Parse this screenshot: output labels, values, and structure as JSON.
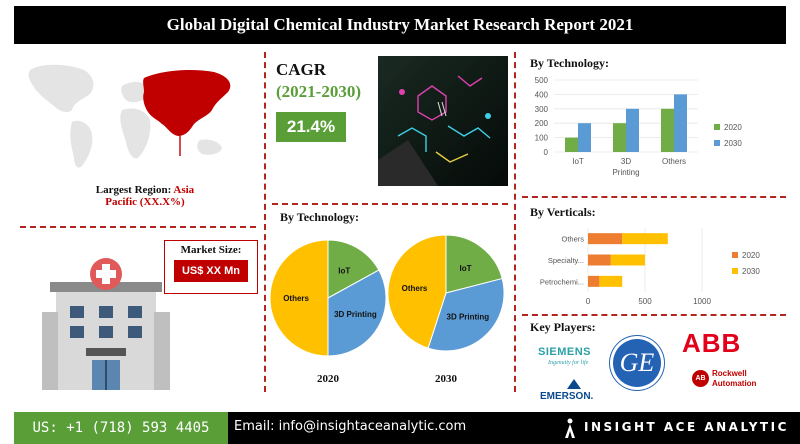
{
  "header": {
    "title": "Global Digital Chemical Industry Market Research Report 2021"
  },
  "region": {
    "label": "Largest Region: ",
    "value_line1": "Asia",
    "value_line2": "Pacific (XX.X%)"
  },
  "cagr": {
    "label": "CAGR",
    "period": "(2021-2030)",
    "value": "21.4%"
  },
  "market_size": {
    "label": "Market Size:",
    "value": "US$ XX Mn"
  },
  "footer": {
    "phone": "US: +1 (718) 593 4405",
    "email": "Email: info@insightaceanalytic.com",
    "brand": "INSIGHT ACE ANALYTIC"
  },
  "key_players": {
    "title": "Key Players:",
    "siemens": "SIEMENS",
    "siemens_tagline": "Ingenuity for life",
    "ge": "GE",
    "abb": "ABB",
    "rockwell1": "Rockwell",
    "rockwell2": "Automation",
    "rockwell_badge": "AB",
    "emerson": "EMERSON."
  },
  "colors": {
    "green": "#70ad47",
    "blue": "#5b9bd5",
    "orange": "#ed7d31",
    "yellow": "#ffc000",
    "red": "#c00000",
    "dash": "#b3261e"
  },
  "chart_data": [
    {
      "type": "bar",
      "title": "By Technology:",
      "categories": [
        "IoT",
        "3D Printing",
        "Others"
      ],
      "category_lines": [
        [
          "IoT"
        ],
        [
          "3D",
          "Printing"
        ],
        [
          "Others"
        ]
      ],
      "series": [
        {
          "name": "2020",
          "values": [
            100,
            200,
            300
          ]
        },
        {
          "name": "2030",
          "values": [
            200,
            300,
            400
          ]
        }
      ],
      "ylim": [
        0,
        500
      ],
      "yticks": [
        0,
        100,
        200,
        300,
        400,
        500
      ],
      "legend": "right"
    },
    {
      "type": "bar",
      "orientation": "horizontal",
      "title": "By Verticals:",
      "categories": [
        "Petrochemi...",
        "Specialty...",
        "Others"
      ],
      "series": [
        {
          "name": "2020",
          "values": [
            100,
            200,
            300
          ]
        },
        {
          "name": "2030",
          "values": [
            200,
            300,
            400
          ]
        }
      ],
      "xlim": [
        0,
        1000
      ],
      "xticks": [
        0,
        500,
        1000
      ],
      "stacked": true,
      "legend": "right"
    },
    {
      "type": "pie",
      "title": "By Technology:",
      "pies": [
        {
          "label": "2020",
          "slices": [
            {
              "name": "IoT",
              "value": 17
            },
            {
              "name": "3D Printing",
              "value": 33
            },
            {
              "name": "Others",
              "value": 50
            }
          ]
        },
        {
          "label": "2030",
          "slices": [
            {
              "name": "IoT",
              "value": 21
            },
            {
              "name": "3D Printing",
              "value": 34
            },
            {
              "name": "Others",
              "value": 45
            }
          ]
        }
      ]
    }
  ]
}
